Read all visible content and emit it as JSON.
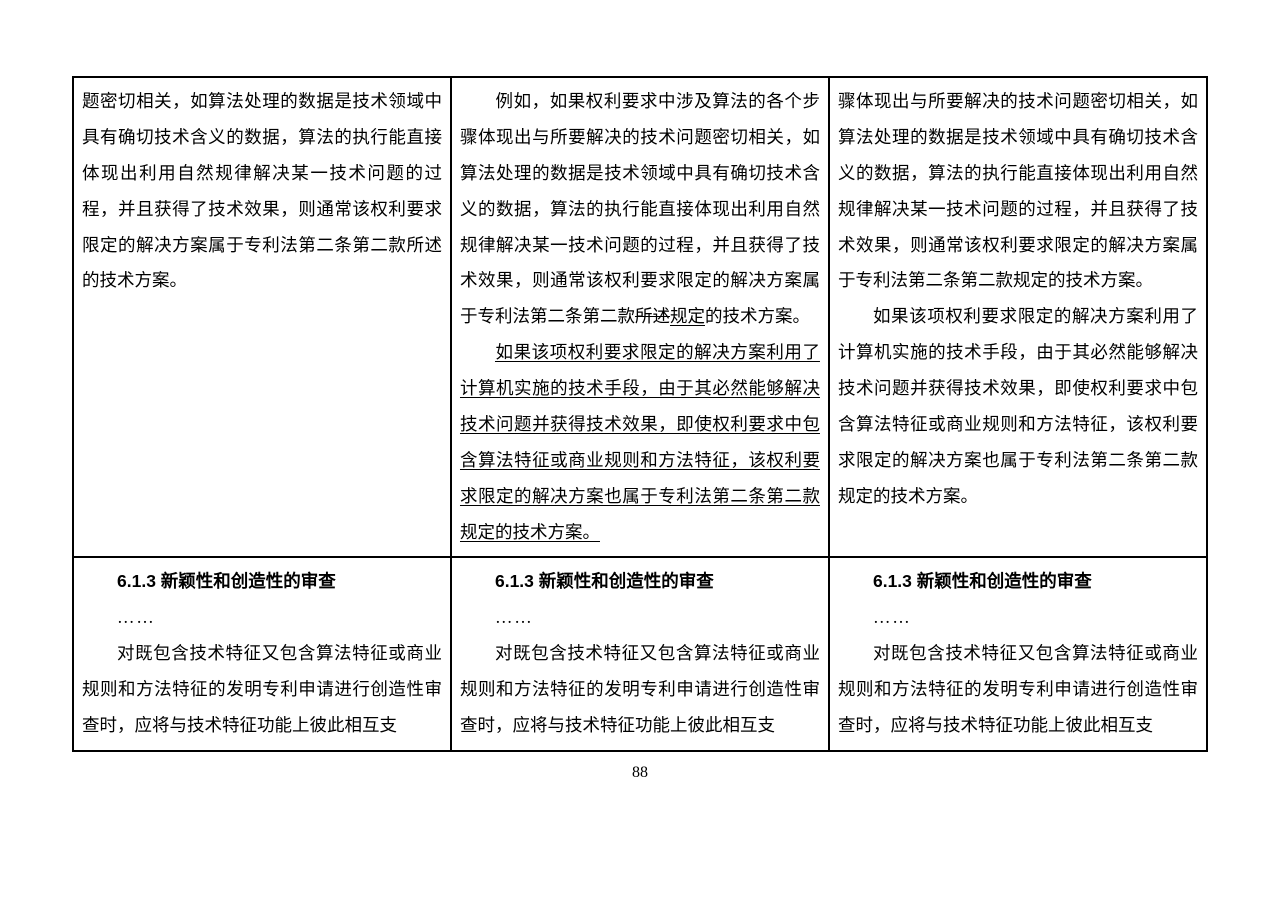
{
  "page_number": "88",
  "table": {
    "row1": {
      "col1": {
        "p1": "题密切相关，如算法处理的数据是技术领域中具有确切技术含义的数据，算法的执行能直接体现出利用自然规律解决某一技术问题的过程，并且获得了技术效果，则通常该权利要求限定的解决方案属于专利法第二条第二款所述的技术方案。"
      },
      "col2": {
        "p1_pre": "例如，如果权利要求中涉及算法的各个步骤体现出与所要解决的技术问题密切相关，如算法处理的数据是技术领域中具有确切技术含义的数据，算法的执行能直接体现出利用自然规律解决某一技术问题的过程，并且获得了技术效果，则通常该权利要求限定的解决方案属于专利法第二条第二款",
        "p1_strike": "所述",
        "p1_ul": "规定",
        "p1_post": "的技术方案。",
        "p2": "如果该项权利要求限定的解决方案利用了计算机实施的技术手段，由于其必然能够解决技术问题并获得技术效果，即使权利要求中包含算法特征或商业规则和方法特征，该权利要求限定的解决方案也属于专利法第二条第二款规定的技术方案。"
      },
      "col3": {
        "p1": "骤体现出与所要解决的技术问题密切相关，如算法处理的数据是技术领域中具有确切技术含义的数据，算法的执行能直接体现出利用自然规律解决某一技术问题的过程，并且获得了技术效果，则通常该权利要求限定的解决方案属于专利法第二条第二款规定的技术方案。",
        "p2": "如果该项权利要求限定的解决方案利用了计算机实施的技术手段，由于其必然能够解决技术问题并获得技术效果，即使权利要求中包含算法特征或商业规则和方法特征，该权利要求限定的解决方案也属于专利法第二条第二款规定的技术方案。"
      }
    },
    "row2": {
      "heading": "6.1.3 新颖性和创造性的审查",
      "ellipsis": "……",
      "body": "对既包含技术特征又包含算法特征或商业规则和方法特征的发明专利申请进行创造性审查时，应将与技术特征功能上彼此相互支"
    }
  }
}
